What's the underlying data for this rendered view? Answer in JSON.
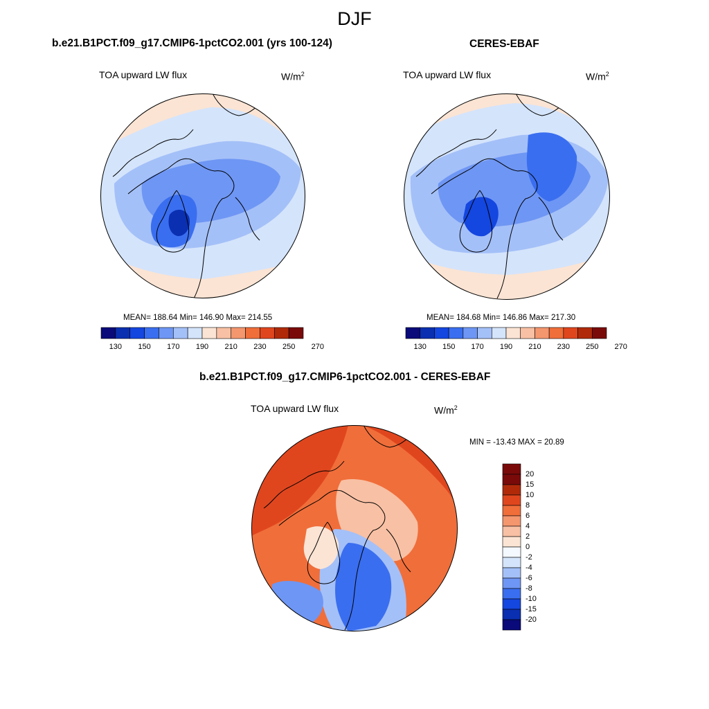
{
  "figure": {
    "title": "DJF"
  },
  "panels": [
    {
      "title": "b.e21.B1PCT.f09_g17.CMIP6-1pctCO2.001 (yrs 100-124)",
      "variable": "TOA upward LW flux",
      "units": "W/m",
      "units_exp": "2",
      "stats": "MEAN= 188.64  Min= 146.90  Max= 214.55"
    },
    {
      "title": "CERES-EBAF",
      "variable": "TOA upward LW flux",
      "units": "W/m",
      "units_exp": "2",
      "stats": "MEAN= 184.68  Min= 146.86  Max= 217.30"
    },
    {
      "title": "b.e21.B1PCT.f09_g17.CMIP6-1pctCO2.001 - CERES-EBAF",
      "variable": "TOA upward LW flux",
      "units": "W/m",
      "units_exp": "2",
      "stats": "MIN = -13.43 MAX =  20.89"
    }
  ],
  "chart_data": [
    {
      "type": "heatmap",
      "projection": "north polar stereographic",
      "colorbar": {
        "orientation": "horizontal",
        "labels": [
          "130",
          "150",
          "170",
          "190",
          "210",
          "230",
          "250",
          "270"
        ],
        "colors": [
          "#0a0a7a",
          "#0a2fb0",
          "#1446e0",
          "#3a6ef0",
          "#6e96f4",
          "#a4c0f8",
          "#d4e4fb",
          "#fbe4d4",
          "#f8c0a4",
          "#f4966e",
          "#f06e3a",
          "#e0461e",
          "#b02a0a",
          "#7a0a0a"
        ]
      },
      "field_mean": 188.64,
      "field_min": 146.9,
      "field_max": 214.55
    },
    {
      "type": "heatmap",
      "projection": "north polar stereographic",
      "colorbar": {
        "orientation": "horizontal",
        "labels": [
          "130",
          "150",
          "170",
          "190",
          "210",
          "230",
          "250",
          "270"
        ],
        "colors": [
          "#0a0a7a",
          "#0a2fb0",
          "#1446e0",
          "#3a6ef0",
          "#6e96f4",
          "#a4c0f8",
          "#d4e4fb",
          "#fbe4d4",
          "#f8c0a4",
          "#f4966e",
          "#f06e3a",
          "#e0461e",
          "#b02a0a",
          "#7a0a0a"
        ]
      },
      "field_mean": 184.68,
      "field_min": 146.86,
      "field_max": 217.3
    },
    {
      "type": "heatmap",
      "projection": "north polar stereographic",
      "colorbar": {
        "orientation": "vertical",
        "labels": [
          "20",
          "15",
          "10",
          "8",
          "6",
          "4",
          "2",
          "0",
          "-2",
          "-4",
          "-6",
          "-8",
          "-10",
          "-15",
          "-20"
        ],
        "colors": [
          "#7a0a0a",
          "#b02a0a",
          "#e0461e",
          "#f06e3a",
          "#f4966e",
          "#f8c0a4",
          "#fbe4d4",
          "#f4f8ff",
          "#d4e4fb",
          "#a4c0f8",
          "#6e96f4",
          "#3a6ef0",
          "#1446e0",
          "#0a2fb0",
          "#0a0a7a"
        ]
      },
      "field_min": -13.43,
      "field_max": 20.89
    }
  ]
}
